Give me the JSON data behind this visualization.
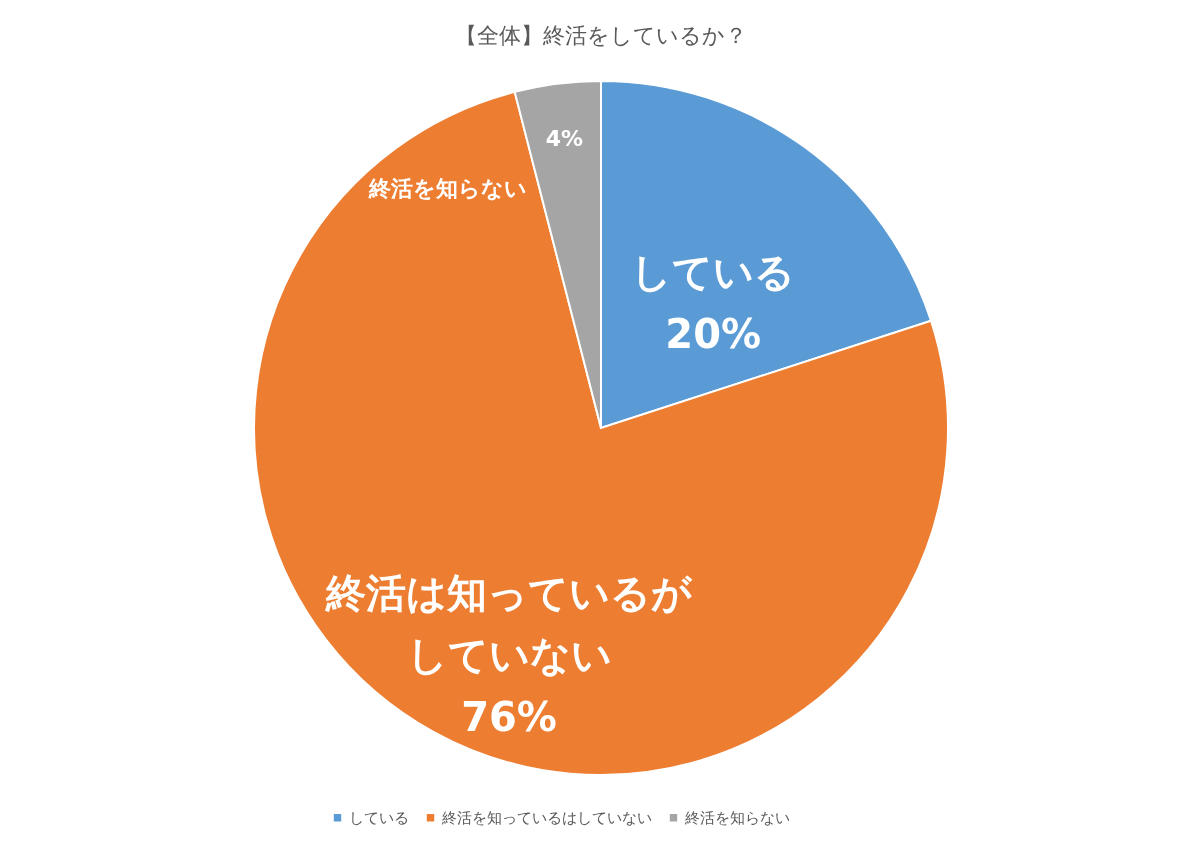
{
  "chart_data": {
    "type": "pie",
    "title": "【全体】終活をしているか？",
    "categories": [
      "している",
      "終活を知っているはしていない",
      "終活を知らない"
    ],
    "values": [
      20,
      76,
      4
    ],
    "colors": [
      "#5b9bd5",
      "#ed7d31",
      "#a5a5a5"
    ],
    "value_labels": [
      "20%",
      "76%",
      "4%"
    ],
    "annotations": [
      {
        "text": "している",
        "x": "している"
      },
      {
        "text": "終活は知っているがしていない",
        "x": "終活を知っているはしていない"
      },
      {
        "text": "終活を知らない",
        "x": "終活を知らない"
      }
    ],
    "legend": "bottom"
  }
}
